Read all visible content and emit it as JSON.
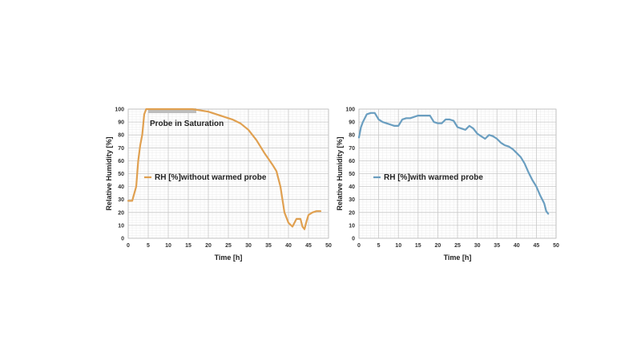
{
  "chart_data": [
    {
      "type": "line",
      "xlabel": "Time [h]",
      "ylabel": "Relative Humidity [%]",
      "xlim": [
        0,
        50
      ],
      "ylim": [
        0,
        100
      ],
      "xticks": [
        0,
        5,
        10,
        15,
        20,
        25,
        30,
        35,
        40,
        45,
        50
      ],
      "yticks": [
        0,
        10,
        20,
        30,
        40,
        50,
        60,
        70,
        80,
        90,
        100
      ],
      "grid": true,
      "legend_position": "middle-left",
      "annotations": [
        {
          "text": "Probe in Saturation",
          "x_range": [
            5,
            17
          ],
          "y": 100
        }
      ],
      "series": [
        {
          "name": "RH [%]without warmed probe",
          "color": "#e0a050",
          "x": [
            0,
            1,
            2,
            2.5,
            3,
            3.5,
            4,
            4.5,
            5,
            7,
            10,
            13,
            16,
            18,
            20,
            22,
            24,
            26,
            28,
            30,
            32,
            34,
            36,
            37,
            38,
            39,
            40,
            41,
            42,
            43,
            43.5,
            44,
            44.5,
            45,
            46,
            47,
            48
          ],
          "y": [
            29,
            29,
            40,
            60,
            72,
            80,
            96,
            100,
            100,
            100,
            100,
            100,
            100,
            99,
            98,
            96,
            94,
            92,
            89,
            84,
            76,
            66,
            57,
            52,
            40,
            20,
            12,
            9,
            15,
            15,
            9,
            7,
            13,
            18,
            20,
            21,
            21
          ]
        }
      ]
    },
    {
      "type": "line",
      "xlabel": "Time [h]",
      "ylabel": "Relative Humidity [%]",
      "xlim": [
        0,
        50
      ],
      "ylim": [
        0,
        100
      ],
      "xticks": [
        0,
        5,
        10,
        15,
        20,
        25,
        30,
        35,
        40,
        45,
        50
      ],
      "yticks": [
        0,
        10,
        20,
        30,
        40,
        50,
        60,
        70,
        80,
        90,
        100
      ],
      "grid": true,
      "legend_position": "middle-left",
      "series": [
        {
          "name": "RH [%]with warmed probe",
          "color": "#6a9ec0",
          "x": [
            0,
            0.5,
            1,
            2,
            3,
            4,
            5,
            6,
            7,
            8,
            9,
            10,
            11,
            12,
            13,
            14,
            15,
            16,
            17,
            18,
            19,
            20,
            21,
            22,
            23,
            24,
            25,
            26,
            27,
            28,
            29,
            30,
            31,
            32,
            33,
            34,
            35,
            36,
            37,
            38,
            39,
            40,
            41,
            42,
            43,
            44,
            45,
            46,
            47,
            47.5,
            48
          ],
          "y": [
            78,
            86,
            90,
            96,
            97,
            97,
            92,
            90,
            89,
            88,
            87,
            87,
            92,
            93,
            93,
            94,
            95,
            95,
            95,
            95,
            90,
            89,
            89,
            92,
            92,
            91,
            86,
            85,
            84,
            87,
            85,
            81,
            79,
            77,
            80,
            79,
            77,
            74,
            72,
            71,
            69,
            66,
            63,
            58,
            51,
            45,
            40,
            33,
            27,
            21,
            19
          ]
        }
      ]
    }
  ]
}
